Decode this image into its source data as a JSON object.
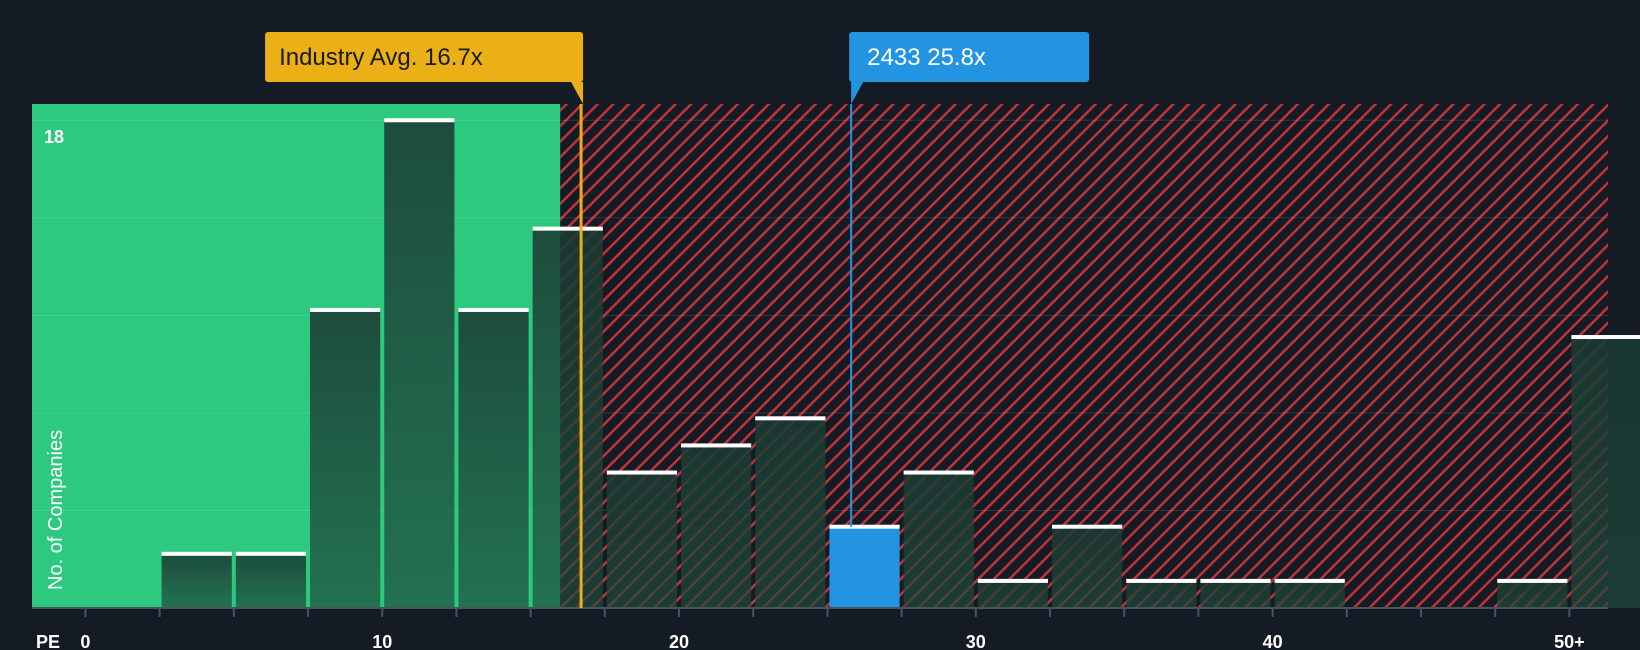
{
  "chart_data": {
    "type": "bar",
    "title": "",
    "xlabel": "PE",
    "ylabel": "No. of Companies",
    "ymax_label": "18",
    "ylim": [
      0,
      18.6
    ],
    "xlim": [
      -1.8,
      51.3
    ],
    "x_ticks": [
      {
        "value": 0,
        "label": "0"
      },
      {
        "value": 10,
        "label": "10"
      },
      {
        "value": 20,
        "label": "20"
      },
      {
        "value": 30,
        "label": "30"
      },
      {
        "value": 40,
        "label": "40"
      },
      {
        "value": 50,
        "label": "50+"
      }
    ],
    "bins": [
      {
        "start": 2.5,
        "end": 5,
        "count": 2
      },
      {
        "start": 5,
        "end": 7.5,
        "count": 2
      },
      {
        "start": 7.5,
        "end": 10,
        "count": 11
      },
      {
        "start": 10,
        "end": 12.5,
        "count": 18
      },
      {
        "start": 12.5,
        "end": 15,
        "count": 11
      },
      {
        "start": 15,
        "end": 17.5,
        "count": 14
      },
      {
        "start": 17.5,
        "end": 20,
        "count": 5
      },
      {
        "start": 20,
        "end": 22.5,
        "count": 6
      },
      {
        "start": 22.5,
        "end": 25,
        "count": 7
      },
      {
        "start": 25,
        "end": 27.5,
        "count": 3,
        "highlight": true
      },
      {
        "start": 27.5,
        "end": 30,
        "count": 5
      },
      {
        "start": 30,
        "end": 32.5,
        "count": 1
      },
      {
        "start": 32.5,
        "end": 35,
        "count": 3
      },
      {
        "start": 35,
        "end": 37.5,
        "count": 1
      },
      {
        "start": 37.5,
        "end": 40,
        "count": 1
      },
      {
        "start": 40,
        "end": 42.5,
        "count": 1
      },
      {
        "start": 47.5,
        "end": 50,
        "count": 1
      },
      {
        "start": 50,
        "end": 52.5,
        "count": 10
      }
    ],
    "industry_avg": {
      "value": 16.7,
      "label": "Industry Avg. 16.7x"
    },
    "company": {
      "value": 25.8,
      "label": "2433 25.8x"
    },
    "good_zone_end": 16.0
  },
  "colors": {
    "background": "#151b24",
    "good_zone": "#2dc97e",
    "bar_dark": "#1e3f36",
    "bad_zone_stripe": "#c2323a",
    "highlight": "#2394e1",
    "industry_callout": "#eab015",
    "company_callout": "#2394e1"
  }
}
